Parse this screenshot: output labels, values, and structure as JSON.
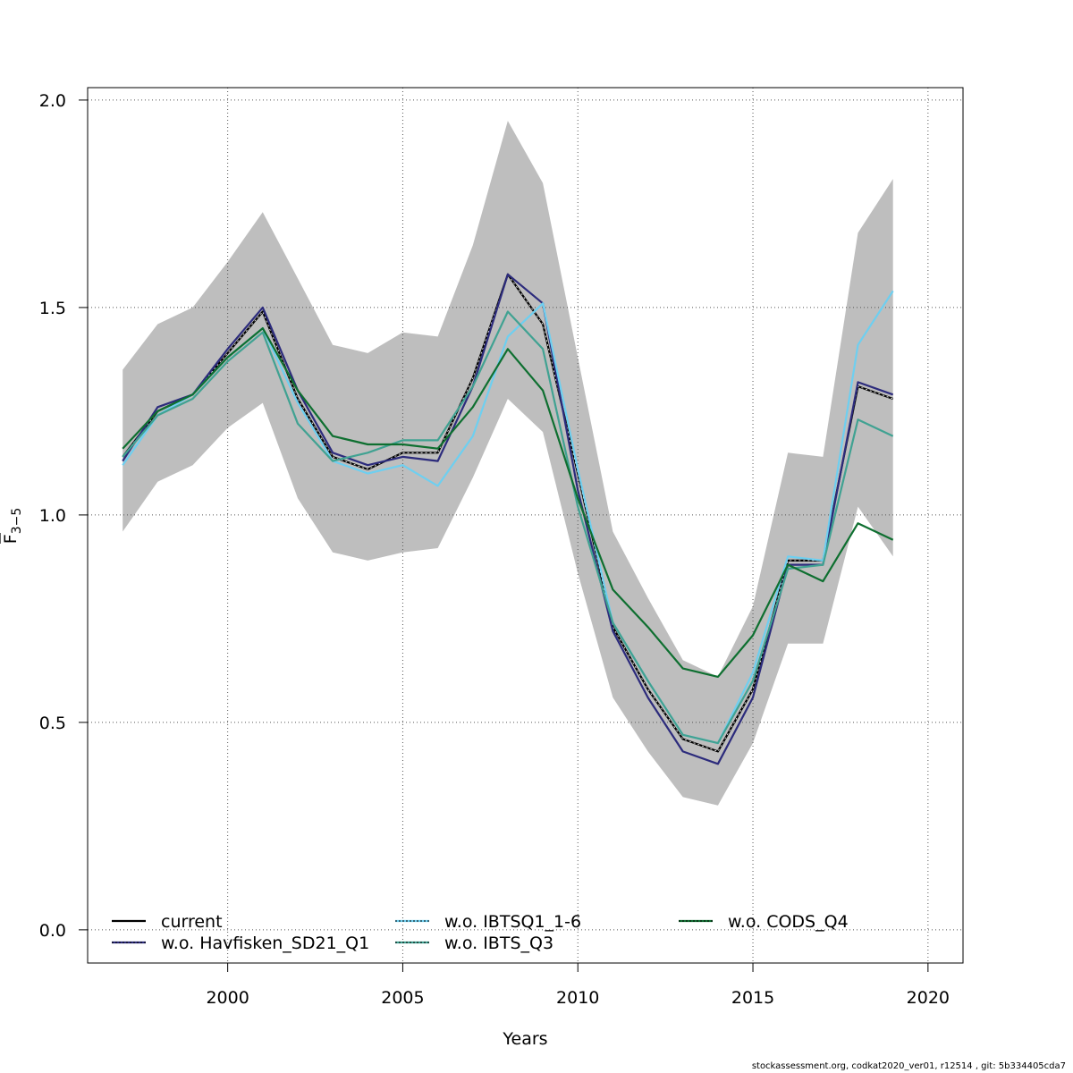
{
  "chart_data": {
    "type": "line",
    "xlabel": "Years",
    "ylabel": "F",
    "ylabel_subscript": "3−5",
    "xlim": [
      1996,
      2021
    ],
    "ylim": [
      -0.08,
      2.03
    ],
    "x_ticks": [
      2000,
      2005,
      2010,
      2015,
      2020
    ],
    "x_tick_labels": [
      "2000",
      "2005",
      "2010",
      "2015",
      "2020"
    ],
    "y_ticks": [
      0.0,
      0.5,
      1.0,
      1.5,
      2.0
    ],
    "y_tick_labels": [
      "0.0",
      "0.5",
      "1.0",
      "1.5",
      "2.0"
    ],
    "grid": true,
    "legend_placement": "bottom",
    "x": [
      1997,
      1998,
      1999,
      2000,
      2001,
      2002,
      2003,
      2004,
      2005,
      2006,
      2007,
      2008,
      2009,
      2010,
      2011,
      2012,
      2013,
      2014,
      2015,
      2016,
      2017,
      2018,
      2019
    ],
    "confidence_band": {
      "color": "#bebebe",
      "upper": [
        1.35,
        1.46,
        1.5,
        1.61,
        1.73,
        1.57,
        1.41,
        1.39,
        1.44,
        1.43,
        1.65,
        1.95,
        1.8,
        1.38,
        0.96,
        0.8,
        0.65,
        0.61,
        0.78,
        1.15,
        1.14,
        1.68,
        1.81
      ],
      "lower": [
        0.96,
        1.08,
        1.12,
        1.21,
        1.27,
        1.04,
        0.91,
        0.89,
        0.91,
        0.92,
        1.09,
        1.28,
        1.2,
        0.86,
        0.56,
        0.43,
        0.32,
        0.3,
        0.45,
        0.69,
        0.69,
        1.02,
        0.9
      ]
    },
    "series": [
      {
        "name": "current",
        "color": "#000000",
        "dash": "solid",
        "values": [
          1.14,
          1.25,
          1.29,
          1.39,
          1.49,
          1.28,
          1.14,
          1.11,
          1.15,
          1.15,
          1.33,
          1.58,
          1.46,
          1.1,
          0.73,
          0.58,
          0.46,
          0.43,
          0.58,
          0.89,
          0.89,
          1.31,
          1.28
        ]
      },
      {
        "name": "w.o. Havfisken_SD21_Q1",
        "color": "#2c2b7c",
        "dash": "solid",
        "values": [
          1.13,
          1.26,
          1.29,
          1.4,
          1.5,
          1.3,
          1.15,
          1.12,
          1.14,
          1.13,
          1.31,
          1.58,
          1.51,
          1.06,
          0.72,
          0.56,
          0.43,
          0.4,
          0.56,
          0.88,
          0.88,
          1.32,
          1.29
        ]
      },
      {
        "name": "w.o. IBTSQ1_1-6",
        "color": "#6ecff0",
        "dash": "solid",
        "values": [
          1.12,
          1.24,
          1.29,
          1.38,
          1.45,
          1.27,
          1.13,
          1.1,
          1.12,
          1.07,
          1.19,
          1.43,
          1.51,
          1.11,
          0.74,
          0.6,
          0.47,
          0.45,
          0.62,
          0.9,
          0.89,
          1.41,
          1.54
        ]
      },
      {
        "name": "w.o. IBTS_Q3",
        "color": "#40a292",
        "dash": "solid",
        "values": [
          1.14,
          1.24,
          1.28,
          1.37,
          1.44,
          1.22,
          1.13,
          1.15,
          1.18,
          1.18,
          1.31,
          1.49,
          1.4,
          1.02,
          0.74,
          0.6,
          0.47,
          0.45,
          0.6,
          0.87,
          0.88,
          1.23,
          1.19
        ]
      },
      {
        "name": "w.o. CODS_Q4",
        "color": "#0e6f30",
        "dash": "solid",
        "values": [
          1.16,
          1.25,
          1.29,
          1.38,
          1.45,
          1.3,
          1.19,
          1.17,
          1.17,
          1.16,
          1.26,
          1.4,
          1.3,
          1.04,
          0.82,
          0.73,
          0.63,
          0.61,
          0.71,
          0.88,
          0.84,
          0.98,
          0.94
        ]
      }
    ],
    "legend": [
      {
        "label": "current",
        "line_color": "#000000",
        "dot_color": null
      },
      {
        "label": "w.o. Havfisken_SD21_Q1",
        "line_color": "#2c2b7c",
        "dot_color": "#000000"
      },
      {
        "label": "w.o. IBTSQ1_1-6",
        "line_color": "#6ecff0",
        "dot_color": "#000000"
      },
      {
        "label": "w.o. IBTS_Q3",
        "line_color": "#40a292",
        "dot_color": "#000000"
      },
      {
        "label": "w.o. CODS_Q4",
        "line_color": "#0e6f30",
        "dot_color": "#000000"
      }
    ]
  },
  "footer": "stockassessment.org, codkat2020_ver01, r12514 , git: 5b334405cda7"
}
